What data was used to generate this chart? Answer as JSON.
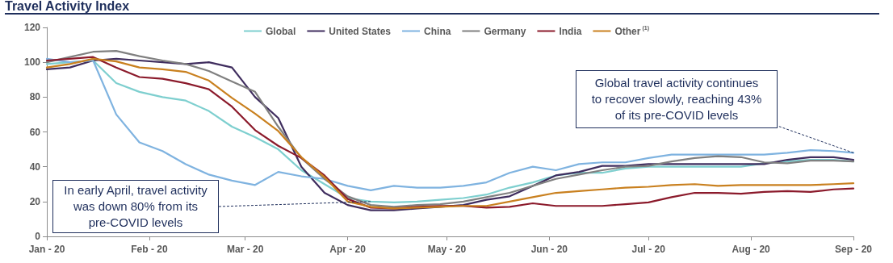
{
  "chart_data": {
    "type": "line",
    "title": "Travel Activity Index",
    "x": [
      "2020-01-01",
      "2020-01-08",
      "2020-01-15",
      "2020-01-22",
      "2020-01-29",
      "2020-02-05",
      "2020-02-12",
      "2020-02-19",
      "2020-02-26",
      "2020-03-04",
      "2020-03-11",
      "2020-03-18",
      "2020-03-25",
      "2020-04-01",
      "2020-04-08",
      "2020-04-15",
      "2020-04-22",
      "2020-04-29",
      "2020-05-06",
      "2020-05-13",
      "2020-05-20",
      "2020-05-27",
      "2020-06-03",
      "2020-06-10",
      "2020-06-17",
      "2020-06-24",
      "2020-07-01",
      "2020-07-08",
      "2020-07-15",
      "2020-07-22",
      "2020-07-29",
      "2020-08-05",
      "2020-08-12",
      "2020-08-19",
      "2020-08-26",
      "2020-09-01"
    ],
    "series": [
      {
        "name": "Global",
        "color": "#7ecfcf",
        "values": [
          99,
          100,
          101,
          88,
          83,
          80,
          78,
          72,
          63,
          57,
          50,
          38,
          30,
          22,
          20,
          19.5,
          20,
          21,
          22,
          24,
          28,
          31,
          35,
          36.5,
          36.5,
          39,
          40,
          40,
          40,
          40,
          40,
          42,
          43,
          44,
          44,
          43
        ]
      },
      {
        "name": "United States",
        "color": "#3f2d5e",
        "values": [
          96,
          97,
          101,
          102,
          101,
          100,
          99,
          100,
          97,
          80,
          68,
          40,
          25,
          18,
          15,
          15,
          16,
          17,
          18,
          21,
          23,
          29,
          35,
          37,
          40.5,
          40.5,
          41.5,
          41.5,
          41.5,
          41.5,
          41.5,
          41.5,
          44,
          45.5,
          45.5,
          44
        ]
      },
      {
        "name": "China",
        "color": "#7fb3e0",
        "values": [
          102,
          100,
          101,
          70,
          54,
          49,
          41.5,
          35.5,
          32,
          29.5,
          37,
          34.5,
          33,
          29,
          26.5,
          29,
          28,
          28,
          29,
          31,
          36.5,
          40,
          38,
          41.5,
          42.5,
          42.5,
          45,
          47,
          47,
          47,
          47,
          47,
          48,
          49.5,
          49,
          48
        ]
      },
      {
        "name": "Germany",
        "color": "#808080",
        "values": [
          100,
          103,
          106,
          106.5,
          103.5,
          101,
          99,
          95,
          89,
          83,
          63,
          45,
          33,
          23,
          18,
          17,
          18,
          18.5,
          20,
          22.5,
          25,
          29,
          33,
          35.5,
          38,
          40,
          40.5,
          43,
          45,
          46,
          45.5,
          42.5,
          42,
          43.5,
          43.5,
          43
        ]
      },
      {
        "name": "India",
        "color": "#8b1a2b",
        "values": [
          101,
          102,
          103,
          97,
          91.5,
          90.5,
          88,
          84.5,
          74.5,
          61,
          52,
          45,
          35,
          21.5,
          16.5,
          16,
          17,
          17.5,
          17.5,
          16.5,
          17,
          19,
          17.5,
          17.5,
          17.5,
          18.5,
          19.5,
          22.5,
          25,
          25,
          24.5,
          25.5,
          26,
          25.5,
          27,
          27.5
        ]
      },
      {
        "name": "Other$^{(1)}$",
        "color": "#c9801f",
        "values": [
          97,
          99,
          102,
          100.5,
          97,
          96,
          94.5,
          89.5,
          79.5,
          70.5,
          60.5,
          45.5,
          34,
          20,
          17,
          16,
          16.5,
          17,
          17.5,
          17.5,
          20,
          22.5,
          25,
          26,
          27,
          28,
          28.5,
          29.5,
          30,
          29,
          29.5,
          29.5,
          29.5,
          29.5,
          30,
          30.5
        ]
      }
    ],
    "xlim": [
      "2020-01-01",
      "2020-09-01"
    ],
    "xticks": [
      {
        "value": "2020-01-01",
        "label": "Jan - 20"
      },
      {
        "value": "2020-02-01",
        "label": "Feb - 20"
      },
      {
        "value": "2020-03-01",
        "label": "Mar - 20"
      },
      {
        "value": "2020-04-01",
        "label": "Apr - 20"
      },
      {
        "value": "2020-05-01",
        "label": "May - 20"
      },
      {
        "value": "2020-06-01",
        "label": "Jun - 20"
      },
      {
        "value": "2020-07-01",
        "label": "Jul - 20"
      },
      {
        "value": "2020-08-01",
        "label": "Aug - 20"
      },
      {
        "value": "2020-09-01",
        "label": "Sep - 20"
      }
    ],
    "ylim": [
      0,
      120
    ],
    "yticks": [
      0,
      20,
      40,
      60,
      80,
      100,
      120
    ],
    "grid": false,
    "legend": "top",
    "marker": "none",
    "line_style": "solid",
    "annotations": [
      {
        "text": "In early April, travel activity was down 80% from its pre-COVID levels",
        "x": "2020-04-08",
        "y": 20
      },
      {
        "text": "Global travel activity continues to recover slowly, reaching 43% of its pre-COVID levels",
        "x": "2020-09-01",
        "y": 48
      }
    ]
  }
}
